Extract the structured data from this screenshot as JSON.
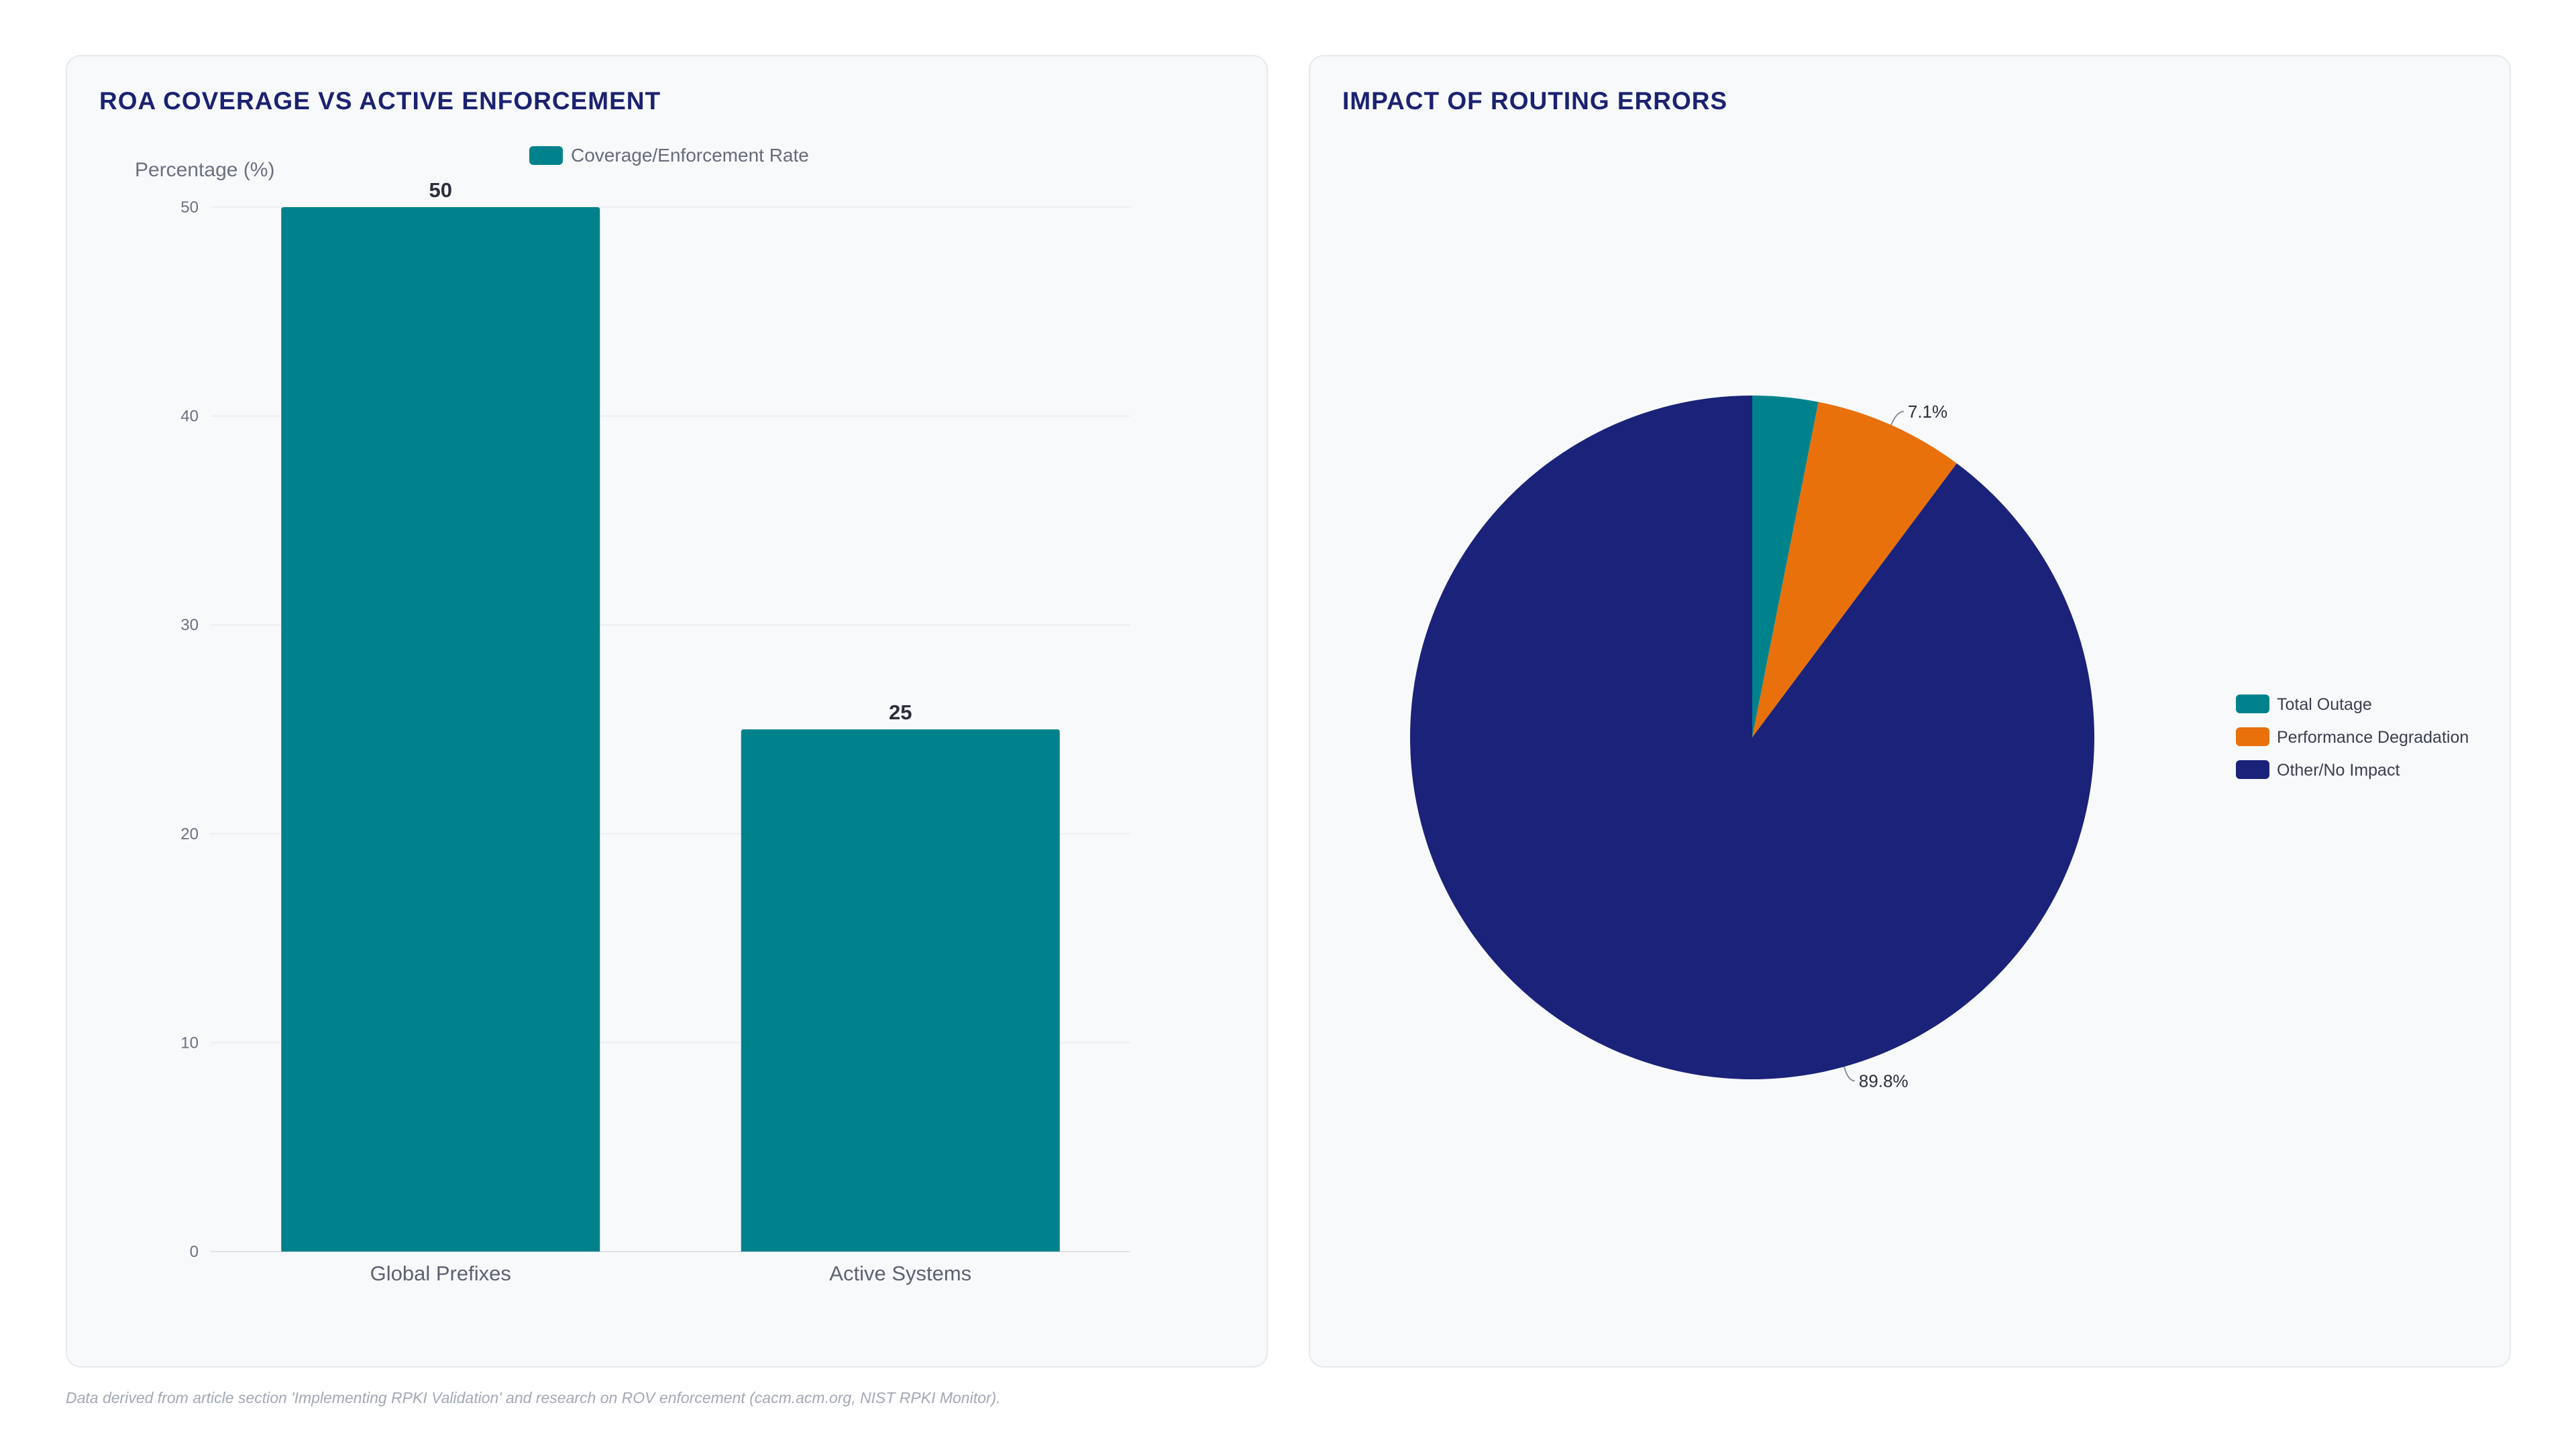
{
  "footnote": "Data derived from article section 'Implementing RPKI Validation' and research on ROV enforcement (cacm.acm.org, NIST RPKI Monitor).",
  "colors": {
    "teal": "#00828c",
    "orange": "#e8710c",
    "navy": "#1b2279",
    "title": "#1b2270"
  },
  "chart_data": [
    {
      "type": "bar",
      "title": "ROA COVERAGE VS ACTIVE ENFORCEMENT",
      "ylabel": "Percentage (%)",
      "xlabel": "",
      "categories": [
        "Global Prefixes",
        "Active Systems"
      ],
      "series": [
        {
          "name": "Coverage/Enforcement Rate",
          "values": [
            50,
            25
          ],
          "color": "#00828c"
        }
      ],
      "data_labels": [
        "50",
        "25"
      ],
      "ylim": [
        0,
        50
      ],
      "yticks": [
        "0",
        "10",
        "20",
        "30",
        "40",
        "50"
      ],
      "grid": true,
      "legend": "top"
    },
    {
      "type": "pie",
      "title": "IMPACT OF ROUTING ERRORS",
      "labels": [
        "Total Outage",
        "Performance Degradation",
        "Other/No Impact"
      ],
      "values": [
        3.1,
        7.1,
        89.8
      ],
      "colors": [
        "#00828c",
        "#e8710c",
        "#1b2279"
      ],
      "data_labels": [
        "",
        "7.1%",
        "89.8%"
      ],
      "legend": "right"
    }
  ]
}
